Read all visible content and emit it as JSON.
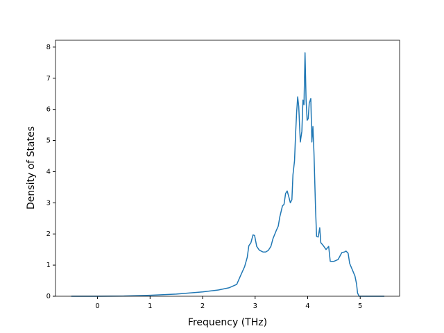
{
  "chart_data": {
    "type": "line",
    "xlabel": "Frequency (THz)",
    "ylabel": "Density of States",
    "x": [
      -0.5,
      0,
      0.5,
      1.0,
      1.5,
      2.0,
      2.3,
      2.5,
      2.65,
      2.72,
      2.8,
      2.85,
      2.88,
      2.92,
      2.96,
      2.99,
      3.03,
      3.08,
      3.15,
      3.2,
      3.25,
      3.3,
      3.34,
      3.4,
      3.44,
      3.47,
      3.52,
      3.55,
      3.58,
      3.61,
      3.64,
      3.67,
      3.7,
      3.72,
      3.75,
      3.77,
      3.79,
      3.81,
      3.83,
      3.86,
      3.89,
      3.91,
      3.93,
      3.95,
      3.97,
      3.99,
      4.01,
      4.03,
      4.06,
      4.08,
      4.1,
      4.12,
      4.15,
      4.17,
      4.2,
      4.23,
      4.25,
      4.3,
      4.35,
      4.4,
      4.43,
      4.5,
      4.58,
      4.65,
      4.7,
      4.73,
      4.77,
      4.8,
      4.85,
      4.9,
      4.93,
      4.95,
      4.98,
      5.1,
      5.46
    ],
    "values": [
      0,
      0,
      0.005,
      0.03,
      0.07,
      0.14,
      0.2,
      0.27,
      0.38,
      0.65,
      0.95,
      1.25,
      1.62,
      1.72,
      1.97,
      1.95,
      1.6,
      1.48,
      1.42,
      1.42,
      1.47,
      1.6,
      1.85,
      2.1,
      2.25,
      2.55,
      2.9,
      2.95,
      3.3,
      3.38,
      3.2,
      3.0,
      3.1,
      3.9,
      4.35,
      5.2,
      5.9,
      6.4,
      6.1,
      4.95,
      5.3,
      6.3,
      6.15,
      7.82,
      6.3,
      5.65,
      5.7,
      6.2,
      6.35,
      4.95,
      5.45,
      4.6,
      2.8,
      1.92,
      1.9,
      2.2,
      1.72,
      1.62,
      1.5,
      1.6,
      1.12,
      1.12,
      1.18,
      1.4,
      1.42,
      1.45,
      1.38,
      1.05,
      0.85,
      0.65,
      0.4,
      0.1,
      0,
      0,
      0
    ],
    "color": "#1f77b4",
    "xlim": [
      -0.8,
      5.75
    ],
    "ylim": [
      0,
      8.22
    ],
    "xticks": [
      0,
      1,
      2,
      3,
      4,
      5
    ],
    "yticks": [
      0,
      1,
      2,
      3,
      4,
      5,
      6,
      7,
      8
    ]
  }
}
